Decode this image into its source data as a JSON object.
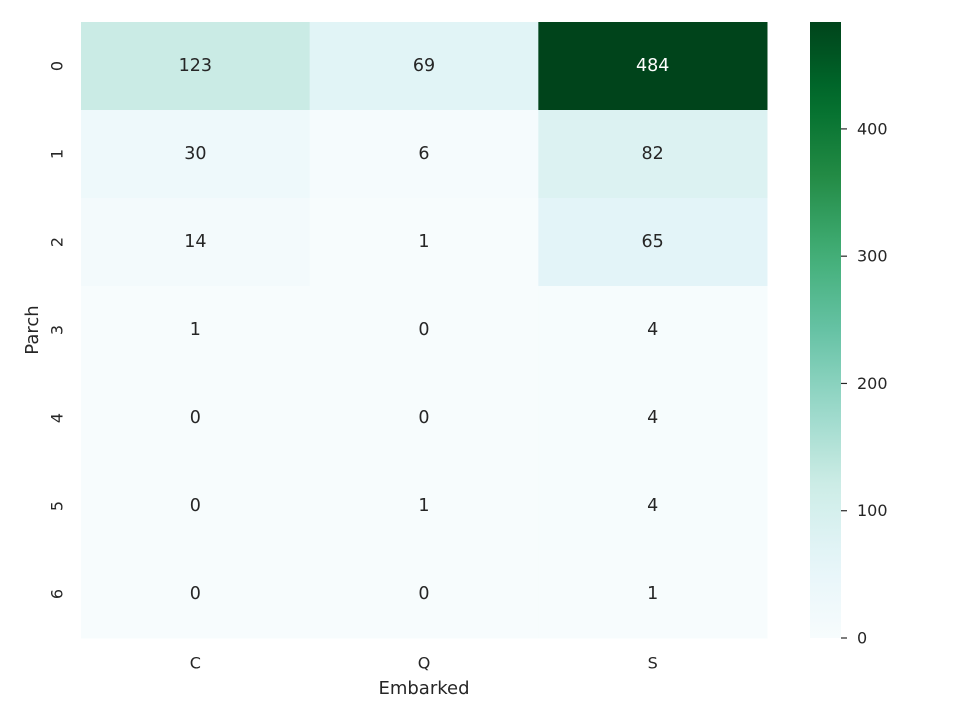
{
  "chart_data": {
    "type": "heatmap",
    "xlabel": "Embarked",
    "ylabel": "Parch",
    "x_categories": [
      "C",
      "Q",
      "S"
    ],
    "y_categories": [
      "0",
      "1",
      "2",
      "3",
      "4",
      "5",
      "6"
    ],
    "values": [
      [
        123,
        69,
        484
      ],
      [
        30,
        6,
        82
      ],
      [
        14,
        1,
        65
      ],
      [
        1,
        0,
        4
      ],
      [
        0,
        0,
        4
      ],
      [
        0,
        1,
        4
      ],
      [
        0,
        0,
        1
      ]
    ],
    "vmin": 0,
    "vmax": 484,
    "colormap": "BuGn",
    "colorbar_ticks": [
      0,
      100,
      200,
      300,
      400
    ]
  }
}
